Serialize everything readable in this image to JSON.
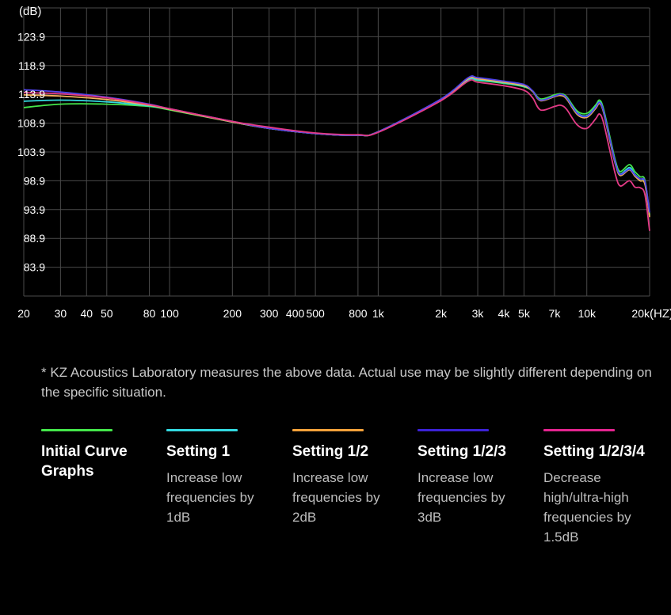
{
  "chart_data": {
    "type": "line",
    "y_unit": "(dB)",
    "x_unit": "(HZ)",
    "x_scale": "log",
    "xlim": [
      20,
      20000
    ],
    "ylim": [
      78.9,
      128.9
    ],
    "grid": true,
    "y_ticks": [
      {
        "value": 123.9,
        "label": "123.9"
      },
      {
        "value": 118.9,
        "label": "118.9"
      },
      {
        "value": 113.9,
        "label": "113.9"
      },
      {
        "value": 108.9,
        "label": "108.9"
      },
      {
        "value": 103.9,
        "label": "103.9"
      },
      {
        "value": 98.9,
        "label": "98.9"
      },
      {
        "value": 93.9,
        "label": "93.9"
      },
      {
        "value": 88.9,
        "label": "88.9"
      },
      {
        "value": 83.9,
        "label": "83.9"
      }
    ],
    "x_ticks": [
      {
        "value": 20,
        "label": "20"
      },
      {
        "value": 30,
        "label": "30"
      },
      {
        "value": 40,
        "label": "40"
      },
      {
        "value": 50,
        "label": "50"
      },
      {
        "value": 80,
        "label": "80"
      },
      {
        "value": 100,
        "label": "100"
      },
      {
        "value": 200,
        "label": "200"
      },
      {
        "value": 300,
        "label": "300"
      },
      {
        "value": 400,
        "label": "400"
      },
      {
        "value": 500,
        "label": "500"
      },
      {
        "value": 800,
        "label": "800"
      },
      {
        "value": 1000,
        "label": "1k"
      },
      {
        "value": 2000,
        "label": "2k"
      },
      {
        "value": 3000,
        "label": "3k"
      },
      {
        "value": 4000,
        "label": "4k"
      },
      {
        "value": 5000,
        "label": "5k"
      },
      {
        "value": 7000,
        "label": "7k"
      },
      {
        "value": 10000,
        "label": "10k"
      },
      {
        "value": 20000,
        "label": "20k"
      }
    ],
    "series": [
      {
        "color": "#44e64a",
        "points": [
          [
            20,
            111.6
          ],
          [
            30,
            112.2
          ],
          [
            50,
            112.2
          ],
          [
            80,
            111.8
          ],
          [
            100,
            111.2
          ],
          [
            200,
            109.1
          ],
          [
            300,
            108.0
          ],
          [
            500,
            107.1
          ],
          [
            800,
            106.8
          ],
          [
            1000,
            107.4
          ],
          [
            2000,
            113.0
          ],
          [
            2700,
            116.2
          ],
          [
            3000,
            116.3
          ],
          [
            4000,
            115.8
          ],
          [
            5000,
            115.2
          ],
          [
            5500,
            114.5
          ],
          [
            6000,
            113.1
          ],
          [
            7000,
            113.8
          ],
          [
            7500,
            114.0
          ],
          [
            8000,
            113.5
          ],
          [
            9000,
            111.0
          ],
          [
            10000,
            110.6
          ],
          [
            11000,
            112.0
          ],
          [
            11500,
            112.9
          ],
          [
            12000,
            111.5
          ],
          [
            13000,
            106.0
          ],
          [
            13800,
            102.0
          ],
          [
            14500,
            100.5
          ],
          [
            16000,
            101.7
          ],
          [
            17000,
            100.5
          ],
          [
            18000,
            99.6
          ],
          [
            19000,
            99.0
          ],
          [
            20000,
            93.0
          ]
        ]
      },
      {
        "color": "#33d9e0",
        "points": [
          [
            20,
            112.7
          ],
          [
            30,
            112.9
          ],
          [
            50,
            112.6
          ],
          [
            80,
            111.9
          ],
          [
            100,
            111.3
          ],
          [
            200,
            109.1
          ],
          [
            300,
            108.0
          ],
          [
            500,
            107.1
          ],
          [
            800,
            106.8
          ],
          [
            1000,
            107.4
          ],
          [
            2000,
            113.0
          ],
          [
            2700,
            116.4
          ],
          [
            3000,
            116.4
          ],
          [
            4000,
            115.9
          ],
          [
            5000,
            115.3
          ],
          [
            5500,
            114.4
          ],
          [
            6000,
            112.9
          ],
          [
            7000,
            113.6
          ],
          [
            7500,
            113.8
          ],
          [
            8000,
            113.3
          ],
          [
            9000,
            110.7
          ],
          [
            10000,
            110.2
          ],
          [
            11000,
            111.7
          ],
          [
            11500,
            112.6
          ],
          [
            12000,
            111.2
          ],
          [
            13000,
            105.6
          ],
          [
            13800,
            101.7
          ],
          [
            14500,
            100.1
          ],
          [
            16000,
            101.2
          ],
          [
            17000,
            100.0
          ],
          [
            18000,
            99.2
          ],
          [
            19000,
            98.6
          ],
          [
            20000,
            92.8
          ]
        ]
      },
      {
        "color": "#f2b25c",
        "points": [
          [
            20,
            113.8
          ],
          [
            30,
            113.6
          ],
          [
            50,
            113.0
          ],
          [
            80,
            112.0
          ],
          [
            100,
            111.3
          ],
          [
            200,
            109.1
          ],
          [
            300,
            108.0
          ],
          [
            500,
            107.1
          ],
          [
            800,
            106.8
          ],
          [
            1000,
            107.4
          ],
          [
            2000,
            113.0
          ],
          [
            2700,
            116.6
          ],
          [
            3000,
            116.6
          ],
          [
            4000,
            116.0
          ],
          [
            5000,
            115.4
          ],
          [
            5500,
            114.4
          ],
          [
            6000,
            112.8
          ],
          [
            7000,
            113.5
          ],
          [
            7500,
            113.7
          ],
          [
            8000,
            113.1
          ],
          [
            9000,
            110.4
          ],
          [
            10000,
            109.9
          ],
          [
            11000,
            111.4
          ],
          [
            11500,
            112.3
          ],
          [
            12000,
            110.9
          ],
          [
            13000,
            105.3
          ],
          [
            13800,
            101.4
          ],
          [
            14500,
            99.8
          ],
          [
            16000,
            100.8
          ],
          [
            17000,
            99.7
          ],
          [
            18000,
            98.9
          ],
          [
            19000,
            98.3
          ],
          [
            20000,
            92.6
          ]
        ]
      },
      {
        "color": "#5044e8",
        "points": [
          [
            20,
            114.7
          ],
          [
            30,
            114.3
          ],
          [
            50,
            113.4
          ],
          [
            80,
            112.2
          ],
          [
            100,
            111.4
          ],
          [
            200,
            109.2
          ],
          [
            300,
            108.0
          ],
          [
            500,
            107.1
          ],
          [
            800,
            106.8
          ],
          [
            1000,
            107.4
          ],
          [
            2000,
            113.1
          ],
          [
            2700,
            116.8
          ],
          [
            3000,
            116.8
          ],
          [
            4000,
            116.2
          ],
          [
            5000,
            115.6
          ],
          [
            5500,
            114.5
          ],
          [
            6000,
            112.9
          ],
          [
            7000,
            113.6
          ],
          [
            7500,
            113.9
          ],
          [
            8000,
            113.3
          ],
          [
            9000,
            110.6
          ],
          [
            10000,
            110.1
          ],
          [
            11000,
            111.6
          ],
          [
            11500,
            112.5
          ],
          [
            12000,
            111.1
          ],
          [
            13000,
            105.6
          ],
          [
            13800,
            101.6
          ],
          [
            14500,
            100.0
          ],
          [
            16000,
            100.9
          ],
          [
            17000,
            99.9
          ],
          [
            18000,
            99.2
          ],
          [
            19000,
            98.8
          ],
          [
            20000,
            93.4
          ]
        ]
      },
      {
        "color": "#e43a86",
        "points": [
          [
            20,
            114.2
          ],
          [
            30,
            114.0
          ],
          [
            50,
            113.3
          ],
          [
            80,
            112.1
          ],
          [
            100,
            111.4
          ],
          [
            200,
            109.2
          ],
          [
            300,
            108.2
          ],
          [
            500,
            107.2
          ],
          [
            800,
            106.9
          ],
          [
            1000,
            107.3
          ],
          [
            2000,
            112.8
          ],
          [
            2700,
            116.2
          ],
          [
            3000,
            116.0
          ],
          [
            4000,
            115.4
          ],
          [
            5000,
            114.6
          ],
          [
            5500,
            113.3
          ],
          [
            6000,
            111.2
          ],
          [
            7000,
            111.8
          ],
          [
            7500,
            112.0
          ],
          [
            8000,
            111.3
          ],
          [
            9000,
            108.6
          ],
          [
            10000,
            108.0
          ],
          [
            11000,
            109.6
          ],
          [
            11500,
            110.5
          ],
          [
            12000,
            109.1
          ],
          [
            13000,
            103.6
          ],
          [
            13800,
            99.6
          ],
          [
            14500,
            98.0
          ],
          [
            16000,
            98.9
          ],
          [
            17000,
            97.8
          ],
          [
            18000,
            97.7
          ],
          [
            19000,
            96.5
          ],
          [
            20000,
            90.2
          ]
        ]
      }
    ]
  },
  "note": "* KZ Acoustics Laboratory measures the above data. Actual use may be slightly different depending on the specific situation.",
  "legend": [
    {
      "name": "Initial Curve Graphs",
      "description": "",
      "color": "#44e64a"
    },
    {
      "name": "Setting 1",
      "description": "Increase low frequencies by 1dB",
      "color": "#33d9e0"
    },
    {
      "name": "Setting 1/2",
      "description": "Increase low frequencies by 2dB",
      "color": "#f2a13a"
    },
    {
      "name": "Setting 1/2/3",
      "description": "Increase low frequencies by 3dB",
      "color": "#3c22d6"
    },
    {
      "name": "Setting 1/2/3/4",
      "description": "Decrease high/ultra-high frequencies by 1.5dB",
      "color": "#e3248f"
    }
  ]
}
